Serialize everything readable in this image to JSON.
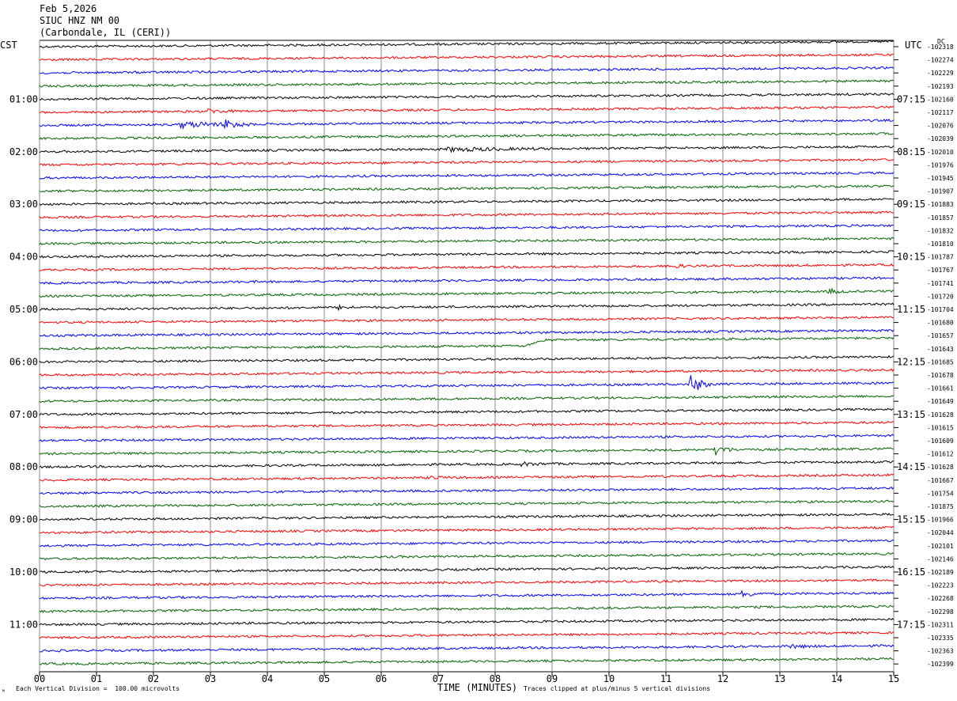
{
  "header": {
    "date": "Feb 5,2026",
    "station": "SIUC HNZ NM 00",
    "location": "(Carbondale, IL (CERI))"
  },
  "left_tz": "CST",
  "right_tz": "UTC",
  "dc_label": "DC",
  "footer": {
    "scale_note": "Each Vertical Division =  100.00 microvolts",
    "clip_note": "Traces clipped at plus/minus 5 vertical divisions",
    "logo_glyph": "ᴹ"
  },
  "colors": {
    "trace_cycle": [
      "#000000",
      "#ff0000",
      "#0000ff",
      "#006400"
    ],
    "grid": "#888888"
  },
  "chart_data": {
    "type": "helicorder",
    "xlabel": "TIME (MINUTES)",
    "x_ticks": [
      "00",
      "01",
      "02",
      "03",
      "04",
      "05",
      "06",
      "07",
      "08",
      "09",
      "10",
      "11",
      "12",
      "13",
      "14",
      "15"
    ],
    "xlim": [
      0,
      15
    ],
    "lines_per_hour": 4,
    "left_time_labels": [
      "01:00",
      "02:00",
      "03:00",
      "04:00",
      "05:00",
      "06:00",
      "07:00",
      "08:00",
      "09:00",
      "10:00",
      "11:00"
    ],
    "right_time_labels": [
      "07:15",
      "08:15",
      "09:15",
      "10:15",
      "11:15",
      "12:15",
      "13:15",
      "14:15",
      "15:15",
      "16:15",
      "17:15"
    ],
    "dc_offsets": [
      "-102318",
      "-102274",
      "-102229",
      "-102193",
      "-102160",
      "-102117",
      "-102076",
      "-102039",
      "-102010",
      "-101976",
      "-101945",
      "-101907",
      "-101883",
      "-101857",
      "-101832",
      "-101810",
      "-101787",
      "-101767",
      "-101741",
      "-101720",
      "-101704",
      "-101680",
      "-101657",
      "-101643",
      "-101685",
      "-101678",
      "-101661",
      "-101649",
      "-101628",
      "-101615",
      "-101609",
      "-101612",
      "-101628",
      "-101667",
      "-101754",
      "-101875",
      "-101966",
      "-102044",
      "-102101",
      "-102146",
      "-102189",
      "-102223",
      "-102268",
      "-102298",
      "-102311",
      "-102335",
      "-102363",
      "-102399"
    ],
    "events": [
      {
        "line": 6,
        "minute": 2.5,
        "amp": 3.5,
        "dur": 1.3
      },
      {
        "line": 6,
        "minute": 3.3,
        "amp": 5.0,
        "dur": 0.4
      },
      {
        "line": 5,
        "minute": 3.0,
        "amp": 2.0,
        "dur": 0.5
      },
      {
        "line": 8,
        "minute": 7.2,
        "amp": 2.2,
        "dur": 1.8
      },
      {
        "line": 17,
        "minute": 11.1,
        "amp": 3.0,
        "dur": 0.3
      },
      {
        "line": 19,
        "minute": 13.9,
        "amp": 2.5,
        "dur": 0.3
      },
      {
        "line": 20,
        "minute": 5.3,
        "amp": 1.8,
        "dur": 0.3
      },
      {
        "line": 26,
        "minute": 11.45,
        "amp": 12.0,
        "dur": 0.35
      },
      {
        "line": 31,
        "minute": 11.9,
        "amp": 5.5,
        "dur": 0.35
      },
      {
        "line": 32,
        "minute": 8.5,
        "amp": 1.6,
        "dur": 0.6
      },
      {
        "line": 33,
        "minute": 6.9,
        "amp": 2.0,
        "dur": 0.3
      },
      {
        "line": 42,
        "minute": 12.35,
        "amp": 3.0,
        "dur": 0.5
      },
      {
        "line": 46,
        "minute": 13.2,
        "amp": 2.0,
        "dur": 0.5
      }
    ],
    "step_events": [
      {
        "line": 23,
        "minute": 8.5,
        "offset": -7
      }
    ],
    "grid": true
  }
}
